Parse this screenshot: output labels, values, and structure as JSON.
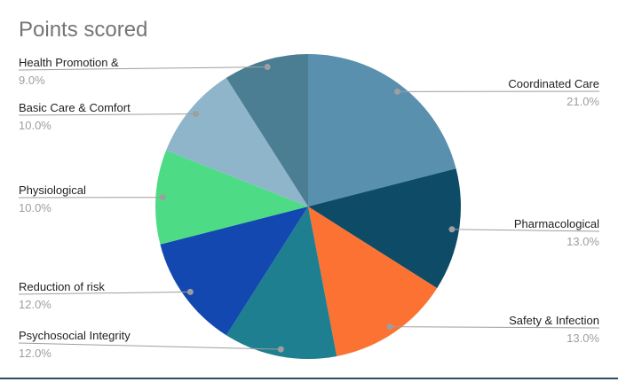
{
  "page": {
    "title": "Points scored",
    "background": "#ffffff",
    "title_color": "#757575",
    "label_color": "#1f1f1f",
    "percent_color": "#9e9e9e",
    "leader_line_color": "#9e9e9e",
    "bottom_border_color": "#2d4d63"
  },
  "chart_data": {
    "type": "pie",
    "title": "Points scored",
    "unit": "percent",
    "start_angle_deg": 0,
    "direction": "clockwise",
    "legend_position": "labeled-callouts",
    "slices": [
      {
        "label": "Coordinated Care",
        "value": 21.0,
        "percent_label": "21.0%",
        "color": "#5890ae"
      },
      {
        "label": "Pharmacological",
        "value": 13.0,
        "percent_label": "13.0%",
        "color": "#0e4b66"
      },
      {
        "label": "Safety & Infection",
        "value": 13.0,
        "percent_label": "13.0%",
        "color": "#fb7232"
      },
      {
        "label": "Psychosocial Integrity",
        "value": 12.0,
        "percent_label": "12.0%",
        "color": "#1e7f90"
      },
      {
        "label": "Reduction of risk",
        "value": 12.0,
        "percent_label": "12.0%",
        "color": "#1348b0"
      },
      {
        "label": "Physiological",
        "value": 10.0,
        "percent_label": "10.0%",
        "color": "#4ddc85"
      },
      {
        "label": "Basic Care & Comfort",
        "value": 10.0,
        "percent_label": "10.0%",
        "color": "#8fb5cb"
      },
      {
        "label": "Health Promotion &",
        "value": 9.0,
        "percent_label": "9.0%",
        "color": "#4b7e93"
      }
    ]
  }
}
